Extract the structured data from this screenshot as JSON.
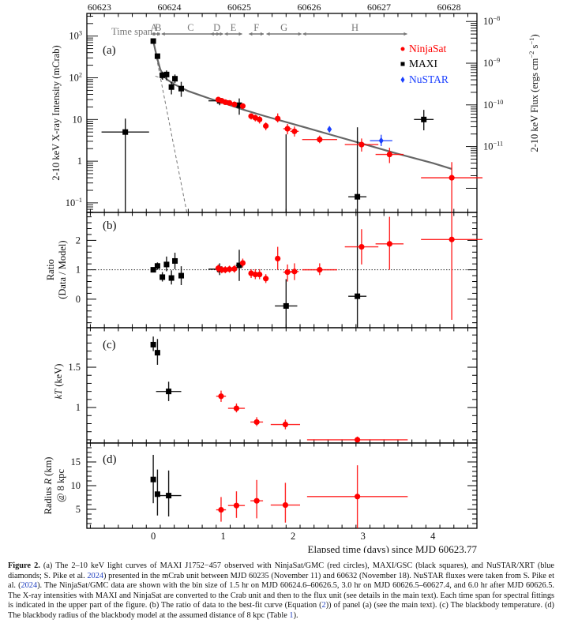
{
  "figure": {
    "caption_label": "Figure 2.",
    "caption_parts": [
      {
        "t": "(a) The 2–10 keV light curves of MAXI J1752−457 observed with NinjaSat/GMC (red circles), MAXI/GSC (black squares), and NuSTAR/XRT (blue diamonds; S. Pike et al. "
      },
      {
        "t": "2024",
        "ref": true
      },
      {
        "t": ") presented in the mCrab unit between MJD 60235 (November 11) and 60632 (November 18). NuSTAR fluxes were taken from S. Pike et al. ("
      },
      {
        "t": "2024",
        "ref": true
      },
      {
        "t": "). The NinjaSat/GMC data are shown with the bin size of 1.5 hr on MJD 60624.6–60626.5, 3.0 hr on MJD 60626.5–60627.4, and 6.0 hr after MJD 60626.5. The X-ray intensities with MAXI and NinjaSat are converted to the Crab unit and then to the flux unit (see details in the main text). Each time span for spectral fittings is indicated in the upper part of the figure. (b) The ratio of data to the best-fit curve (Equation ("
      },
      {
        "t": "2",
        "ref": true
      },
      {
        "t": ")) of panel (a) (see the main text). (c) The blackbody temperature. (d) The blackbody radius of the blackbody model at the assumed distance of 8 kpc (Table "
      },
      {
        "t": "1",
        "ref": true
      },
      {
        "t": ")."
      }
    ]
  },
  "colors": {
    "ninjasat": "#ff0000",
    "maxi": "#000000",
    "nustar": "#1a3fff",
    "model": "#666666",
    "axis": "#000000",
    "timespan": "#777777"
  },
  "chart_data": [
    {
      "panel": "a",
      "type": "scatter",
      "label": "(a)",
      "ylabel": "2-10 keV X-ray Intensity (mCrab)",
      "ylabel_right": "2-10 keV Flux (ergs cm^-2 s^-1)",
      "yscale": "log",
      "ylim": [
        0.059,
        3500
      ],
      "yticks": [
        {
          "v": 1000,
          "label": "10^3"
        },
        {
          "v": 100,
          "label": "10^2"
        },
        {
          "v": 10,
          "label": "10"
        },
        {
          "v": 1,
          "label": "1"
        },
        {
          "v": 0.1,
          "label": "10^-1"
        }
      ],
      "yticks_right": [
        {
          "mcrab": 2240,
          "label": "10^-8"
        },
        {
          "mcrab": 224,
          "label": "10^-9"
        },
        {
          "mcrab": 22.4,
          "label": "10^-10"
        },
        {
          "mcrab": 2.24,
          "label": "10^-11"
        }
      ],
      "top_axis": {
        "label_values": [
          "60623",
          "60624",
          "60625",
          "60626",
          "60627",
          "60628"
        ],
        "elapsed_at": [
          -0.77,
          0.23,
          1.23,
          2.23,
          3.23,
          4.23
        ]
      },
      "time_span_title": "Time span",
      "time_spans": [
        {
          "name": "A",
          "start": -0.02,
          "end": 0.04
        },
        {
          "name": "B",
          "start": 0.04,
          "end": 0.1
        },
        {
          "name": "C",
          "start": 0.12,
          "end": 0.95
        },
        {
          "name": "D",
          "start": 0.82,
          "end": 1.0
        },
        {
          "name": "E",
          "start": 1.02,
          "end": 1.27
        },
        {
          "name": "F",
          "start": 1.37,
          "end": 1.58
        },
        {
          "name": "G",
          "start": 1.62,
          "end": 2.12
        },
        {
          "name": "H",
          "start": 2.14,
          "end": 3.63
        }
      ],
      "legend": {
        "position": "top-right",
        "entries": [
          {
            "name": "NinjaSat",
            "marker": "circle"
          },
          {
            "name": "MAXI",
            "marker": "square"
          },
          {
            "name": "NuSTAR",
            "marker": "diamond"
          }
        ]
      },
      "series": [
        {
          "name": "MAXI",
          "marker": "square",
          "points": [
            {
              "x": 0.0,
              "y": 760,
              "xerr": 0.01,
              "ylo": 700,
              "yhi": 800
            },
            {
              "x": 0.06,
              "y": 330,
              "xerr": 0.01,
              "ylo": 300,
              "yhi": 370
            },
            {
              "x": 0.13,
              "y": 115,
              "xerr": 0.02,
              "ylo": 90,
              "yhi": 140
            },
            {
              "x": 0.19,
              "y": 120,
              "xerr": 0.02,
              "ylo": 90,
              "yhi": 150
            },
            {
              "x": 0.26,
              "y": 60,
              "xerr": 0.02,
              "ylo": 40,
              "yhi": 80
            },
            {
              "x": 0.31,
              "y": 95,
              "xerr": 0.02,
              "ylo": 75,
              "yhi": 120
            },
            {
              "x": 0.4,
              "y": 55,
              "xerr": 0.02,
              "ylo": 35,
              "yhi": 80
            },
            {
              "x": -0.4,
              "y": 5,
              "xerr": 0.34,
              "ylo": 0.059,
              "yhi": 10.5
            },
            {
              "x": 0.95,
              "y": 28,
              "xerr": 0.16,
              "ylo": 22,
              "yhi": 33
            },
            {
              "x": 1.23,
              "y": 22,
              "xerr": 0.05,
              "ylo": 13,
              "yhi": 32
            },
            {
              "x": 1.9,
              "y": 0.059,
              "xerr": 0.0,
              "ylo": 0.059,
              "yhi": 4.4
            },
            {
              "x": 2.92,
              "y": 0.14,
              "xerr": 0.13,
              "ylo": 0.059,
              "yhi": 6.5
            },
            {
              "x": 3.87,
              "y": 10,
              "xerr": 0.14,
              "ylo": 5.5,
              "yhi": 17
            }
          ]
        },
        {
          "name": "NinjaSat",
          "marker": "circle",
          "points": [
            {
              "x": 0.93,
              "y": 30,
              "xerr": 0.03,
              "ylo": 26,
              "yhi": 35
            },
            {
              "x": 0.98,
              "y": 28,
              "xerr": 0.03,
              "ylo": 25,
              "yhi": 32
            },
            {
              "x": 1.03,
              "y": 26,
              "xerr": 0.03,
              "ylo": 23,
              "yhi": 29
            },
            {
              "x": 1.09,
              "y": 25,
              "xerr": 0.03,
              "ylo": 22,
              "yhi": 28
            },
            {
              "x": 1.16,
              "y": 23,
              "xerr": 0.03,
              "ylo": 20,
              "yhi": 27
            },
            {
              "x": 1.28,
              "y": 21,
              "xerr": 0.03,
              "ylo": 18,
              "yhi": 24
            },
            {
              "x": 1.4,
              "y": 12,
              "xerr": 0.03,
              "ylo": 10,
              "yhi": 14
            },
            {
              "x": 1.46,
              "y": 11,
              "xerr": 0.03,
              "ylo": 9,
              "yhi": 13
            },
            {
              "x": 1.52,
              "y": 10,
              "xerr": 0.03,
              "ylo": 8,
              "yhi": 12
            },
            {
              "x": 1.61,
              "y": 7,
              "xerr": 0.04,
              "ylo": 5.5,
              "yhi": 8.5
            },
            {
              "x": 1.78,
              "y": 10.5,
              "xerr": 0.02,
              "ylo": 8.5,
              "yhi": 14
            },
            {
              "x": 1.92,
              "y": 6,
              "xerr": 0.06,
              "ylo": 4.4,
              "yhi": 7.8
            },
            {
              "x": 2.02,
              "y": 5.2,
              "xerr": 0.06,
              "ylo": 3.9,
              "yhi": 6.8
            },
            {
              "x": 2.38,
              "y": 3.3,
              "xerr": 0.25,
              "ylo": 2.7,
              "yhi": 4.1
            },
            {
              "x": 2.98,
              "y": 2.5,
              "xerr": 0.24,
              "ylo": 1.7,
              "yhi": 3.5
            },
            {
              "x": 3.38,
              "y": 1.45,
              "xerr": 0.2,
              "ylo": 0.9,
              "yhi": 2.1
            },
            {
              "x": 4.27,
              "y": 0.4,
              "xerr": 0.44,
              "ylo": 0.059,
              "yhi": 0.95
            }
          ]
        },
        {
          "name": "NuSTAR",
          "marker": "diamond",
          "points": [
            {
              "x": 2.52,
              "y": 5.8,
              "xerr": 0.02,
              "ylo": 5.4,
              "yhi": 6.3
            },
            {
              "x": 3.26,
              "y": 3.1,
              "xerr": 0.16,
              "ylo": 2.3,
              "yhi": 4.3
            }
          ]
        }
      ],
      "model": {
        "total_line": {
          "description": "best-fit decay curve (solid gray)",
          "x": [
            0.0,
            0.05,
            0.1,
            0.15,
            0.2,
            0.3,
            0.5,
            0.8,
            1.0,
            1.3,
            1.6,
            2.0,
            2.5,
            3.0,
            3.5,
            4.0,
            4.27
          ],
          "y": [
            760,
            320,
            160,
            110,
            90,
            70,
            48,
            32,
            25,
            17,
            12,
            7.8,
            4.5,
            2.6,
            1.5,
            0.9,
            0.65
          ]
        },
        "component_lines": [
          {
            "description": "fast component (dashed gray)",
            "x": [
              0.0,
              0.48
            ],
            "y": [
              760,
              0.059
            ]
          },
          {
            "description": "slow component (dashed gray)",
            "x": [
              0.03,
              0.3
            ],
            "y": [
              110,
              75
            ]
          }
        ]
      }
    },
    {
      "panel": "b",
      "type": "scatter",
      "label": "(b)",
      "ylabel": "Ratio",
      "ylabel2": "(Data / Model)",
      "ylim": [
        -0.97,
        2.95
      ],
      "yticks": [
        {
          "v": 2,
          "label": "2"
        },
        {
          "v": 1,
          "label": "1"
        },
        {
          "v": 0,
          "label": "0"
        }
      ],
      "reference_line": 1,
      "series": [
        {
          "name": "MAXI",
          "marker": "square",
          "points": [
            {
              "x": 0.0,
              "y": 1.0,
              "xerr": 0.01,
              "ylo": 0.92,
              "yhi": 1.05
            },
            {
              "x": 0.06,
              "y": 1.13,
              "xerr": 0.01,
              "ylo": 1.0,
              "yhi": 1.25
            },
            {
              "x": 0.13,
              "y": 0.75,
              "xerr": 0.02,
              "ylo": 0.6,
              "yhi": 0.92
            },
            {
              "x": 0.19,
              "y": 1.18,
              "xerr": 0.02,
              "ylo": 0.95,
              "yhi": 1.45
            },
            {
              "x": 0.26,
              "y": 0.72,
              "xerr": 0.02,
              "ylo": 0.5,
              "yhi": 0.98
            },
            {
              "x": 0.31,
              "y": 1.3,
              "xerr": 0.02,
              "ylo": 1.02,
              "yhi": 1.58
            },
            {
              "x": 0.4,
              "y": 0.8,
              "xerr": 0.02,
              "ylo": 0.48,
              "yhi": 1.12
            },
            {
              "x": 0.95,
              "y": 1.02,
              "xerr": 0.16,
              "ylo": 0.82,
              "yhi": 1.22
            },
            {
              "x": 1.23,
              "y": 1.15,
              "xerr": 0.05,
              "ylo": 0.62,
              "yhi": 1.68
            },
            {
              "x": 1.9,
              "y": -0.23,
              "xerr": 0.16,
              "ylo": -0.97,
              "yhi": 0.68
            },
            {
              "x": 2.92,
              "y": 0.1,
              "xerr": 0.13,
              "ylo": -0.97,
              "yhi": 2.95
            }
          ]
        },
        {
          "name": "NinjaSat",
          "marker": "circle",
          "points": [
            {
              "x": 0.93,
              "y": 1.05,
              "xerr": 0.03,
              "ylo": 0.9,
              "yhi": 1.18
            },
            {
              "x": 0.98,
              "y": 1.0,
              "xerr": 0.03,
              "ylo": 0.88,
              "yhi": 1.12
            },
            {
              "x": 1.03,
              "y": 1.0,
              "xerr": 0.03,
              "ylo": 0.88,
              "yhi": 1.12
            },
            {
              "x": 1.09,
              "y": 1.02,
              "xerr": 0.03,
              "ylo": 0.9,
              "yhi": 1.14
            },
            {
              "x": 1.16,
              "y": 1.03,
              "xerr": 0.03,
              "ylo": 0.9,
              "yhi": 1.16
            },
            {
              "x": 1.28,
              "y": 1.23,
              "xerr": 0.03,
              "ylo": 1.08,
              "yhi": 1.38
            },
            {
              "x": 1.4,
              "y": 0.88,
              "xerr": 0.03,
              "ylo": 0.72,
              "yhi": 1.02
            },
            {
              "x": 1.46,
              "y": 0.84,
              "xerr": 0.03,
              "ylo": 0.68,
              "yhi": 1.02
            },
            {
              "x": 1.52,
              "y": 0.84,
              "xerr": 0.03,
              "ylo": 0.68,
              "yhi": 1.02
            },
            {
              "x": 1.61,
              "y": 0.7,
              "xerr": 0.04,
              "ylo": 0.55,
              "yhi": 0.85
            },
            {
              "x": 1.78,
              "y": 1.38,
              "xerr": 0.02,
              "ylo": 1.0,
              "yhi": 1.78
            },
            {
              "x": 1.92,
              "y": 0.92,
              "xerr": 0.06,
              "ylo": 0.6,
              "yhi": 1.18
            },
            {
              "x": 2.02,
              "y": 0.94,
              "xerr": 0.06,
              "ylo": 0.65,
              "yhi": 1.22
            },
            {
              "x": 2.38,
              "y": 1.0,
              "xerr": 0.25,
              "ylo": 0.82,
              "yhi": 1.22
            },
            {
              "x": 2.98,
              "y": 1.78,
              "xerr": 0.24,
              "ylo": 1.18,
              "yhi": 2.38
            },
            {
              "x": 3.38,
              "y": 1.88,
              "xerr": 0.2,
              "ylo": 1.0,
              "yhi": 2.8
            },
            {
              "x": 4.27,
              "y": 2.03,
              "xerr": 0.44,
              "ylo": -0.7,
              "yhi": 2.95
            }
          ]
        }
      ]
    },
    {
      "panel": "c",
      "type": "scatter",
      "label": "(c)",
      "ylabel": "kT (keV)",
      "ylim": [
        0.56,
        1.99
      ],
      "yticks": [
        {
          "v": 1.5,
          "label": "1.5"
        },
        {
          "v": 1,
          "label": "1"
        }
      ],
      "series": [
        {
          "name": "MAXI",
          "marker": "square",
          "points": [
            {
              "x": 0.0,
              "y": 1.78,
              "xerr": 0.01,
              "ylo": 1.7,
              "yhi": 1.88
            },
            {
              "x": 0.06,
              "y": 1.68,
              "xerr": 0.01,
              "ylo": 1.53,
              "yhi": 1.85
            },
            {
              "x": 0.22,
              "y": 1.2,
              "xerr": 0.18,
              "ylo": 1.08,
              "yhi": 1.32
            }
          ]
        },
        {
          "name": "NinjaSat",
          "marker": "circle",
          "points": [
            {
              "x": 0.97,
              "y": 1.14,
              "xerr": 0.07,
              "ylo": 1.07,
              "yhi": 1.21
            },
            {
              "x": 1.19,
              "y": 0.99,
              "xerr": 0.12,
              "ylo": 0.94,
              "yhi": 1.05
            },
            {
              "x": 1.48,
              "y": 0.82,
              "xerr": 0.09,
              "ylo": 0.77,
              "yhi": 0.88
            },
            {
              "x": 1.89,
              "y": 0.79,
              "xerr": 0.21,
              "ylo": 0.73,
              "yhi": 0.85
            },
            {
              "x": 2.92,
              "y": 0.6,
              "xerr": 0.72,
              "ylo": 0.57,
              "yhi": 0.64
            }
          ]
        }
      ]
    },
    {
      "panel": "d",
      "type": "scatter",
      "label": "(d)",
      "ylabel": "Radius R (km)",
      "ylabel2": "@ 8 kpc",
      "ylim": [
        1,
        19
      ],
      "yticks": [
        {
          "v": 15,
          "label": "15"
        },
        {
          "v": 10,
          "label": "10"
        },
        {
          "v": 5,
          "label": "5"
        }
      ],
      "xlabel": "Elapsed time (days) since MJD 60623.77",
      "xticks": [
        {
          "v": 0,
          "label": "0"
        },
        {
          "v": 1,
          "label": "1"
        },
        {
          "v": 2,
          "label": "2"
        },
        {
          "v": 3,
          "label": "3"
        },
        {
          "v": 4,
          "label": "4"
        }
      ],
      "xlim": [
        -0.95,
        4.63
      ],
      "series": [
        {
          "name": "MAXI",
          "marker": "square",
          "points": [
            {
              "x": 0.0,
              "y": 11.3,
              "xerr": 0.01,
              "ylo": 6.3,
              "yhi": 16.5
            },
            {
              "x": 0.06,
              "y": 8.2,
              "xerr": 0.01,
              "ylo": 3.7,
              "yhi": 13.4
            },
            {
              "x": 0.22,
              "y": 7.9,
              "xerr": 0.18,
              "ylo": 3.5,
              "yhi": 13.2
            }
          ]
        },
        {
          "name": "NinjaSat",
          "marker": "circle",
          "points": [
            {
              "x": 0.97,
              "y": 4.9,
              "xerr": 0.07,
              "ylo": 2.4,
              "yhi": 7.6
            },
            {
              "x": 1.19,
              "y": 5.8,
              "xerr": 0.12,
              "ylo": 3.2,
              "yhi": 8.8
            },
            {
              "x": 1.48,
              "y": 6.8,
              "xerr": 0.09,
              "ylo": 3.1,
              "yhi": 11.2
            },
            {
              "x": 1.89,
              "y": 5.9,
              "xerr": 0.21,
              "ylo": 2.2,
              "yhi": 10.6
            },
            {
              "x": 2.92,
              "y": 7.7,
              "xerr": 0.72,
              "ylo": 1.0,
              "yhi": 14.3
            }
          ]
        }
      ]
    }
  ]
}
